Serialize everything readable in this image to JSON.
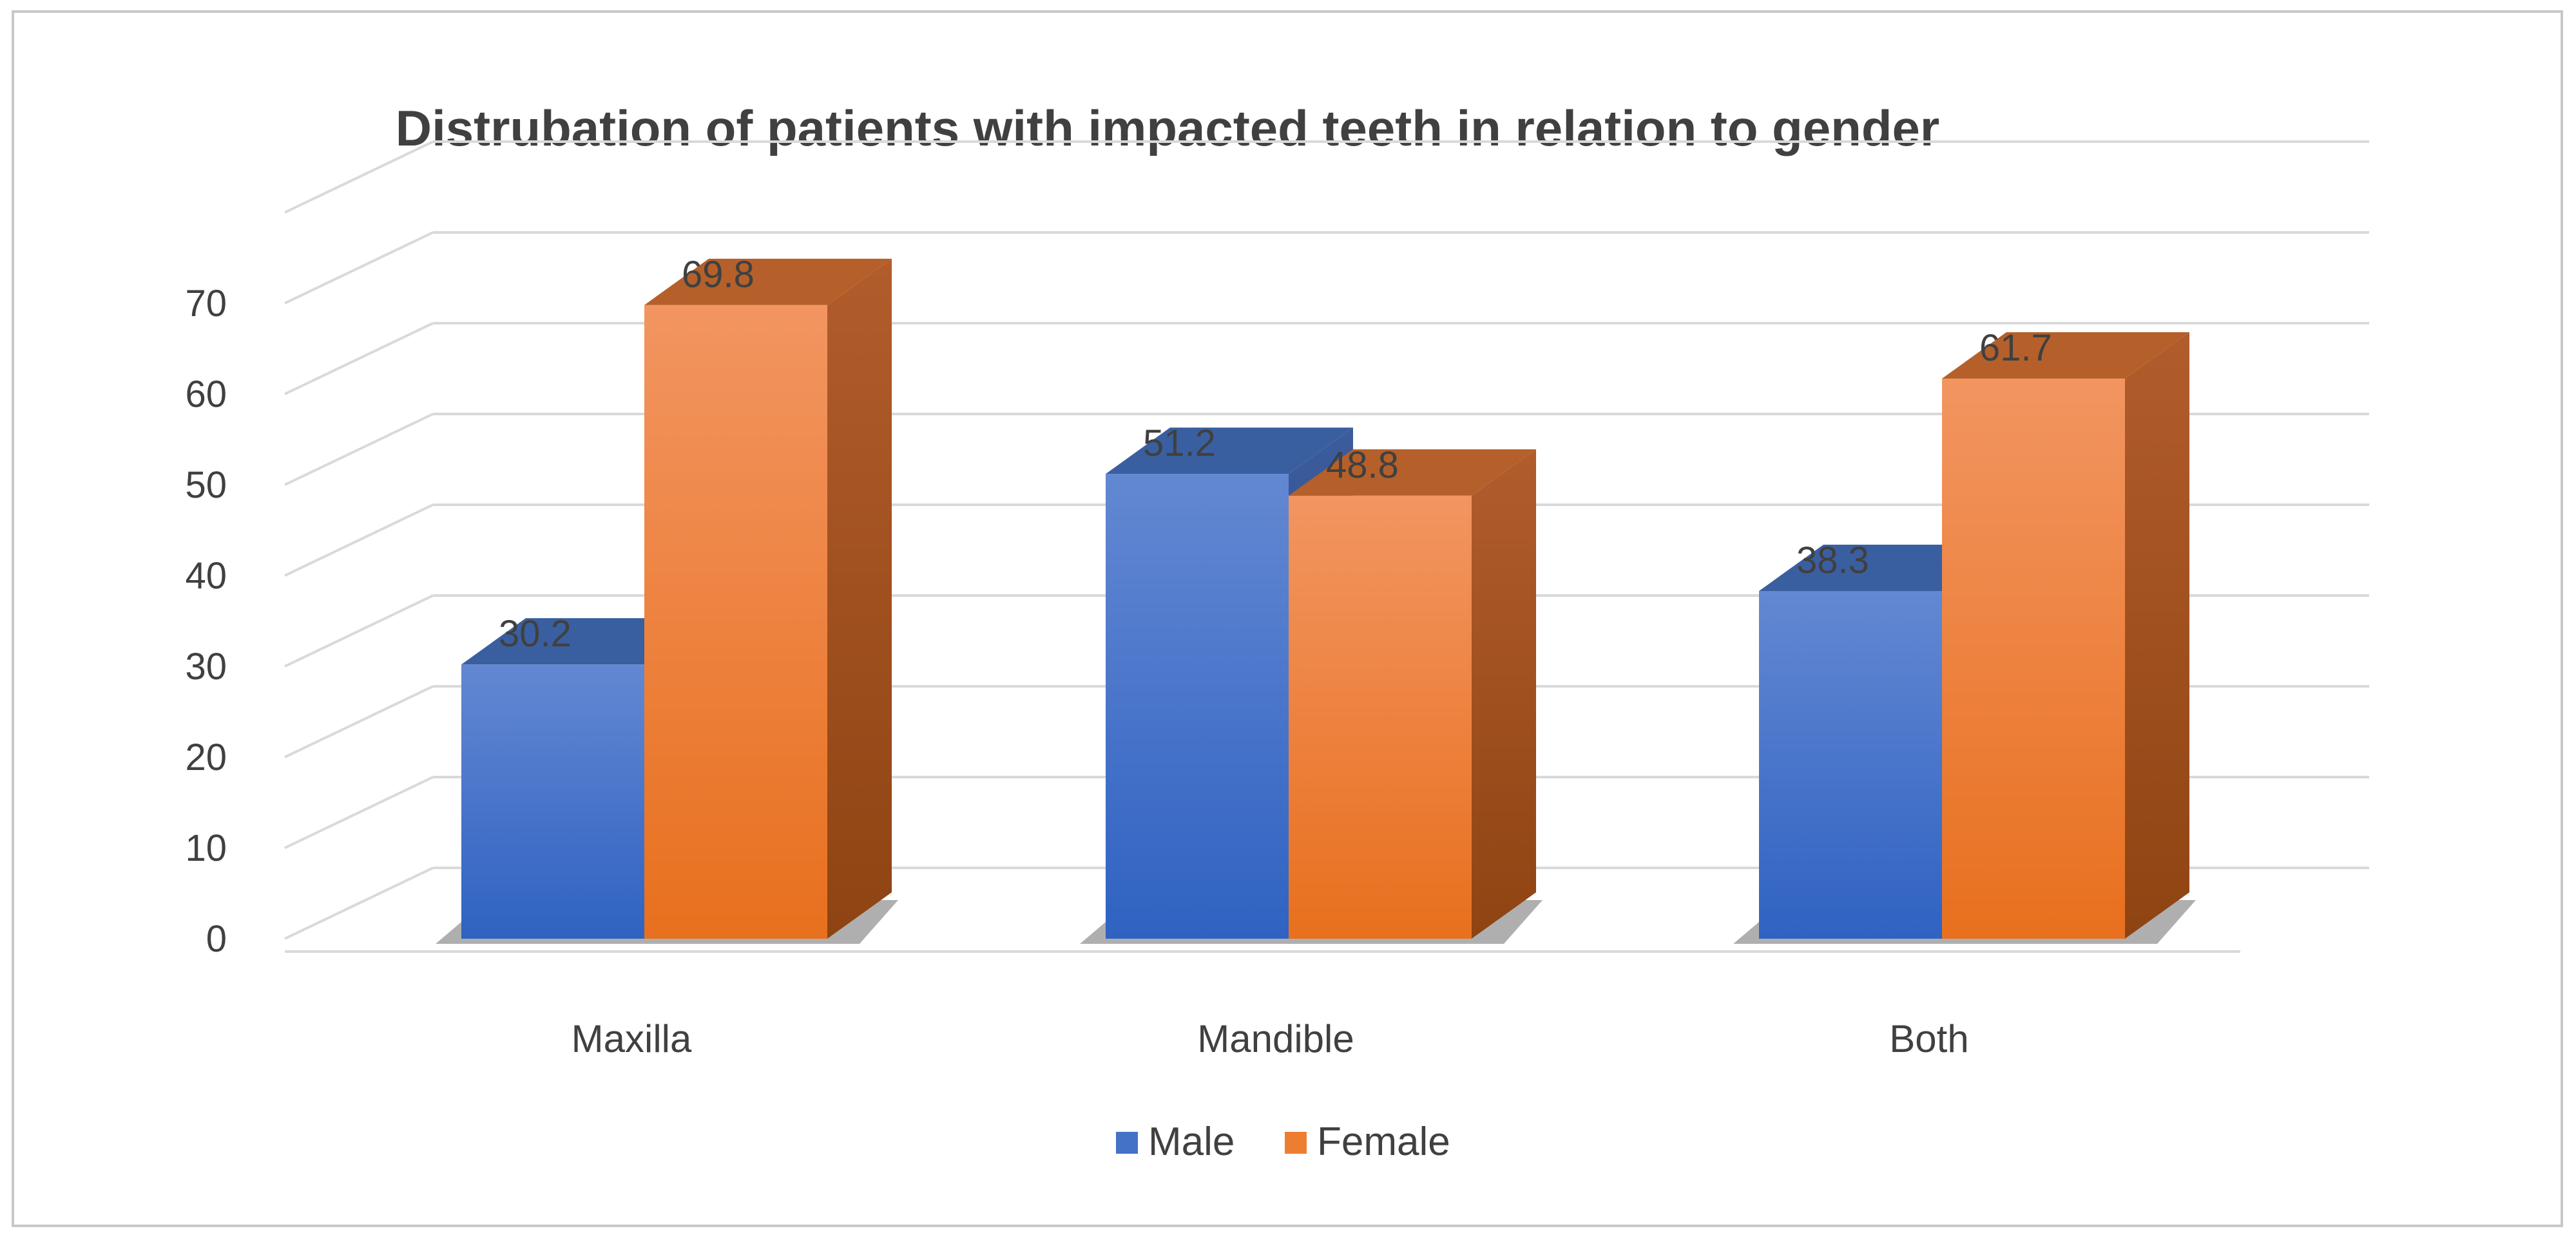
{
  "chart_data": {
    "type": "bar",
    "title": "Distrubation  of patients with impacted teeth in relation to gender",
    "categories": [
      "Maxilla",
      "Mandible",
      "Both"
    ],
    "series": [
      {
        "name": "Male",
        "values": [
          30.2,
          51.2,
          38.3
        ]
      },
      {
        "name": "Female",
        "values": [
          69.8,
          48.8,
          61.7
        ]
      }
    ],
    "data_labels": [
      [
        "30.2",
        "51.2",
        "38.3"
      ],
      [
        "69.8",
        "48.8",
        "61.7"
      ]
    ],
    "yticks": [
      "0",
      "10",
      "20",
      "30",
      "40",
      "50",
      "60",
      "70"
    ],
    "ylim": [
      0,
      80
    ],
    "xlabel": "",
    "ylabel": "",
    "grid": true,
    "legend_position": "bottom"
  },
  "colors": {
    "male_front": "#4472c4",
    "male_top": "#3a5fa0",
    "male_side": "#2f4f8a",
    "female_front": "#ed7d31",
    "female_top": "#b5602a",
    "female_side": "#9c4c1a",
    "grid": "#d9d9d9",
    "floor_shadow": "#6d6d6d"
  }
}
